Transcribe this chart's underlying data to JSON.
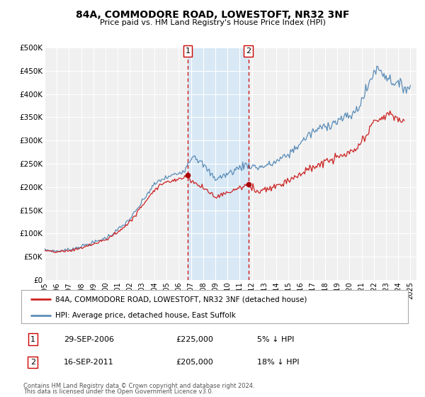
{
  "title": "84A, COMMODORE ROAD, LOWESTOFT, NR32 3NF",
  "subtitle": "Price paid vs. HM Land Registry's House Price Index (HPI)",
  "ylim": [
    0,
    500000
  ],
  "yticks": [
    0,
    50000,
    100000,
    150000,
    200000,
    250000,
    300000,
    350000,
    400000,
    450000,
    500000
  ],
  "ytick_labels": [
    "£0",
    "£50K",
    "£100K",
    "£150K",
    "£200K",
    "£250K",
    "£300K",
    "£350K",
    "£400K",
    "£450K",
    "£500K"
  ],
  "xlim_start": 1995.0,
  "xlim_end": 2025.5,
  "xtick_years": [
    1995,
    1996,
    1997,
    1998,
    1999,
    2000,
    2001,
    2002,
    2003,
    2004,
    2005,
    2006,
    2007,
    2008,
    2009,
    2010,
    2011,
    2012,
    2013,
    2014,
    2015,
    2016,
    2017,
    2018,
    2019,
    2020,
    2021,
    2022,
    2023,
    2024,
    2025
  ],
  "hpi_color": "#5b8db8",
  "price_color": "#cc2222",
  "marker_color": "#aa0000",
  "bg_color": "#ffffff",
  "plot_bg_color": "#f0f0f0",
  "grid_color": "#ffffff",
  "shade_color": "#d8e8f5",
  "vline_color": "#cc0000",
  "sale1_x": 2006.747,
  "sale1_y": 225000,
  "sale1_label": "1",
  "sale1_date": "29-SEP-2006",
  "sale1_price": "£225,000",
  "sale1_pct": "5% ↓ HPI",
  "sale2_x": 2011.712,
  "sale2_y": 205000,
  "sale2_label": "2",
  "sale2_date": "16-SEP-2011",
  "sale2_price": "£205,000",
  "sale2_pct": "18% ↓ HPI",
  "legend_line1": "84A, COMMODORE ROAD, LOWESTOFT, NR32 3NF (detached house)",
  "legend_line2": "HPI: Average price, detached house, East Suffolk",
  "footer1": "Contains HM Land Registry data © Crown copyright and database right 2024.",
  "footer2": "This data is licensed under the Open Government Licence v3.0."
}
